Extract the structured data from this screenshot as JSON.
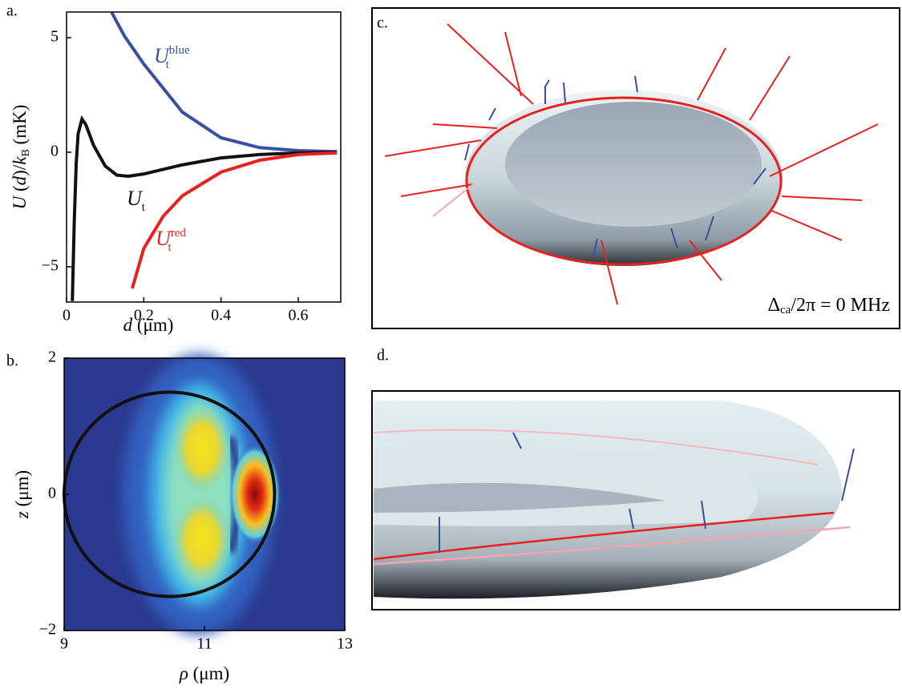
{
  "chart_data": [
    {
      "panel_label": "a.",
      "type": "line",
      "x_label": [
        "d",
        " (μm)"
      ],
      "y_label": [
        "U",
        " (",
        "d",
        ")/",
        "k",
        "B",
        " (mK)"
      ],
      "xlim": [
        0,
        0.71
      ],
      "ylim": [
        -6.54,
        6.12
      ],
      "xticks": [
        0,
        0.2,
        0.4,
        0.6
      ],
      "yticks": [
        {
          "value": -5,
          "label": "−5"
        },
        0,
        5
      ],
      "series": [
        {
          "name": "U",
          "name_sub": "t",
          "name_sup": "blue",
          "color": "#3a4fa3",
          "x": [
            0.117,
            0.15,
            0.2,
            0.3,
            0.4,
            0.5,
            0.6,
            0.7
          ],
          "values": [
            6.1,
            5.07,
            3.85,
            1.75,
            0.63,
            0.2,
            0.07,
            0.02
          ]
        },
        {
          "name": "U",
          "name_sub": "t",
          "color": "#111111",
          "x": [
            0.015,
            0.02,
            0.025,
            0.03,
            0.04,
            0.05,
            0.07,
            0.1,
            0.13,
            0.16,
            0.2,
            0.3,
            0.4,
            0.5,
            0.6,
            0.7
          ],
          "values": [
            -6.5,
            -3,
            -0.5,
            0.8,
            1.45,
            1.2,
            0.3,
            -0.6,
            -1.0,
            -1.05,
            -0.95,
            -0.55,
            -0.25,
            -0.1,
            -0.03,
            0
          ]
        },
        {
          "name": "U",
          "name_sub": "t",
          "name_sup": "red",
          "color": "#e8201e",
          "x": [
            0.17,
            0.2,
            0.25,
            0.3,
            0.4,
            0.5,
            0.6,
            0.7
          ],
          "values": [
            -5.95,
            -4.2,
            -2.8,
            -1.9,
            -0.87,
            -0.35,
            -0.1,
            -0.03
          ]
        }
      ]
    },
    {
      "panel_label": "b.",
      "type": "heatmap",
      "x_label": [
        "ρ",
        " (μm)"
      ],
      "y_label": [
        "z",
        " (μm)"
      ],
      "xlim": [
        9,
        13
      ],
      "ylim": [
        -2,
        2
      ],
      "xticks": [
        9,
        11,
        13
      ],
      "yticks": [
        {
          "value": -2,
          "label": "−2"
        },
        0,
        2
      ],
      "circle": {
        "center": [
          10.5,
          0
        ],
        "radius": 1.5
      }
    }
  ],
  "renders": [
    {
      "panel_label": "c.",
      "annotation": [
        "Δ",
        "ca",
        "/2π = 0 MHz"
      ]
    },
    {
      "panel_label": "d."
    }
  ]
}
